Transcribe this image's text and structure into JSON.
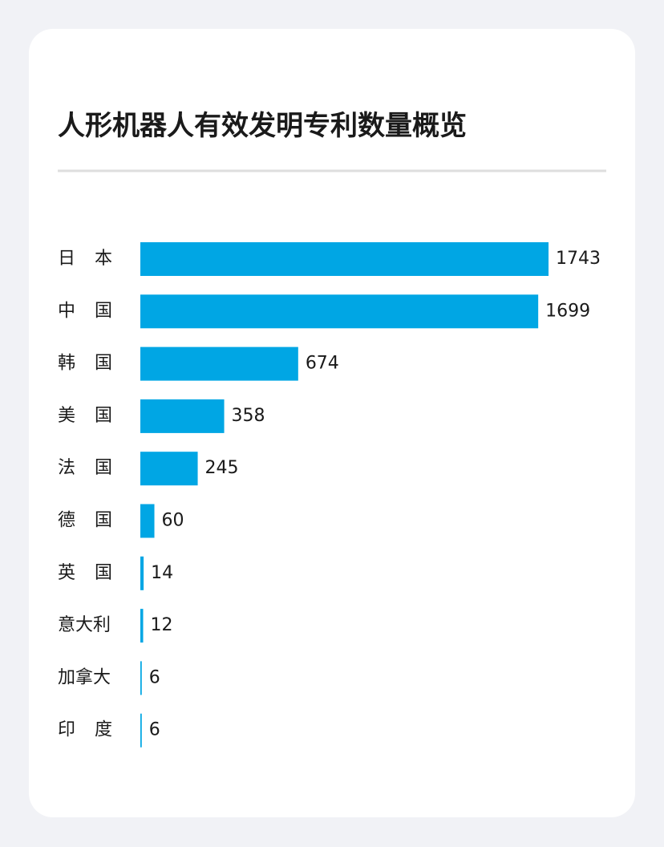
{
  "chart_data": {
    "type": "bar",
    "orientation": "horizontal",
    "title": "人形机器人有效发明专利数量概览",
    "categories": [
      "日本",
      "中国",
      "韩国",
      "美国",
      "法国",
      "德国",
      "英国",
      "意大利",
      "加拿大",
      "印度"
    ],
    "values": [
      1743,
      1699,
      674,
      358,
      245,
      60,
      14,
      12,
      6,
      6
    ],
    "color": "#00a6e4"
  }
}
